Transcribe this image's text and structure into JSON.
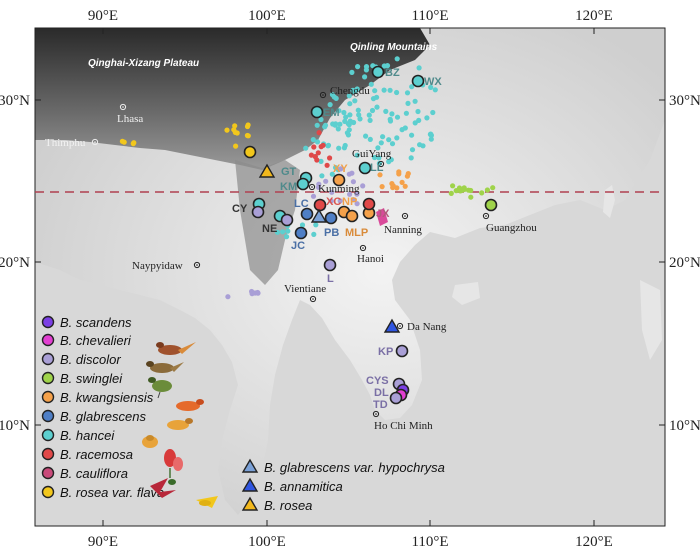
{
  "axes": {
    "lon_ticks": [
      "90°E",
      "100°E",
      "110°E",
      "120°E"
    ],
    "lat_ticks": [
      "30°N",
      "20°N",
      "10°N"
    ]
  },
  "regions": {
    "plateau": "Qinghai-Xizang Plateau",
    "mountains": "Qinling Mountains"
  },
  "cities": [
    {
      "id": "lhasa",
      "name": "Lhasa"
    },
    {
      "id": "thimphu",
      "name": "Thimphu"
    },
    {
      "id": "chengdu",
      "name": "Chengdu"
    },
    {
      "id": "guiyang",
      "name": "GuiYang"
    },
    {
      "id": "kunming",
      "name": "Kunming"
    },
    {
      "id": "nanning",
      "name": "Nanning"
    },
    {
      "id": "guangzhou",
      "name": "Guangzhou"
    },
    {
      "id": "hanoi",
      "name": "Hanoi"
    },
    {
      "id": "naypyidaw",
      "name": "Naypyidaw"
    },
    {
      "id": "vientiane",
      "name": "Vientiane"
    },
    {
      "id": "danang",
      "name": "Da Nang"
    },
    {
      "id": "hcm",
      "name": "Ho Chi Minh"
    }
  ],
  "site_labels": [
    {
      "id": "bz",
      "text": "BZ",
      "color": "#4f8a8b"
    },
    {
      "id": "wx",
      "text": "WX",
      "color": "#4f8a8b"
    },
    {
      "id": "em",
      "text": "EM",
      "color": "#4f8a8b"
    },
    {
      "id": "gt",
      "text": "GT",
      "color": "#4f8a8b"
    },
    {
      "id": "km",
      "text": "KM",
      "color": "#4f8a8b"
    },
    {
      "id": "cy",
      "text": "CY",
      "color": "#333333"
    },
    {
      "id": "ne",
      "text": "NE",
      "color": "#333333"
    },
    {
      "id": "lc",
      "text": "LC",
      "color": "#4a6fa5"
    },
    {
      "id": "xc",
      "text": "XC",
      "color": "#d9534f"
    },
    {
      "id": "np",
      "text": "NP",
      "color": "#f0a04b"
    },
    {
      "id": "jx",
      "text": "JX",
      "color": "#b05a7a"
    },
    {
      "id": "pb",
      "text": "PB",
      "color": "#4a6fa5"
    },
    {
      "id": "mlp",
      "text": "MLP",
      "color": "#d98b3a"
    },
    {
      "id": "jc",
      "text": "JC",
      "color": "#4a6fa5"
    },
    {
      "id": "l",
      "text": "L",
      "color": "#7a6fa5"
    },
    {
      "id": "kp",
      "text": "KP",
      "color": "#7a6fa5"
    },
    {
      "id": "cys",
      "text": "CYS",
      "color": "#7a6fa5"
    },
    {
      "id": "dl",
      "text": "DL",
      "color": "#7a6fa5"
    },
    {
      "id": "td",
      "text": "TD",
      "color": "#7a6fa5"
    },
    {
      "id": "ll",
      "text": "LL",
      "color": "#4f8a8b"
    },
    {
      "id": "xy",
      "text": "XY",
      "color": "#f0a04b"
    }
  ],
  "legend": {
    "species": [
      {
        "name": "B. scandens",
        "color": "#7b3fe4"
      },
      {
        "name": "B. chevalieri",
        "color": "#e23fd1"
      },
      {
        "name": "B. discolor",
        "color": "#a99fd6"
      },
      {
        "name": "B. swinglei",
        "color": "#9fd34a"
      },
      {
        "name": "B. kwangsiensis",
        "color": "#f5a14a"
      },
      {
        "name": "B. glabrescens",
        "color": "#4f7fc6"
      },
      {
        "name": "B. hancei",
        "color": "#5ccfcf"
      },
      {
        "name": "B. racemosa",
        "color": "#e04848"
      },
      {
        "name": "B. cauliflora",
        "color": "#c94a7a"
      },
      {
        "name": "B. rosea var. flava",
        "color": "#f2c71c"
      }
    ],
    "triangles": [
      {
        "name": "B. glabrescens var. hypochrysa",
        "color": "#7aa0d6"
      },
      {
        "name": "B. annamitica",
        "color": "#2f55e0"
      },
      {
        "name": "B. rosea",
        "color": "#f2b81c"
      }
    ]
  }
}
